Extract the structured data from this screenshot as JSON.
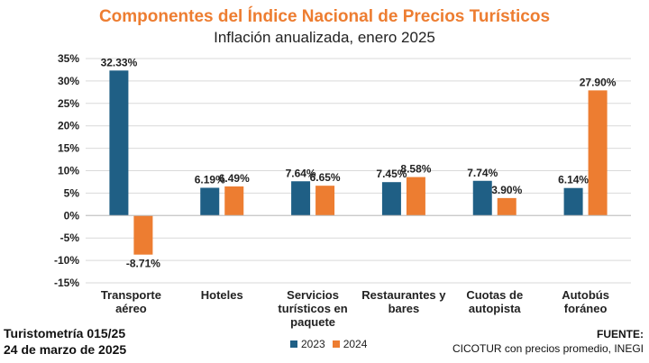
{
  "chart_data": {
    "type": "bar",
    "title": "Componentes del Índice Nacional de Precios Turísticos",
    "subtitle": "Inflación anualizada, enero 2025",
    "categories": [
      [
        "Transporte",
        "aéreo"
      ],
      [
        "Hoteles"
      ],
      [
        "Servicios",
        "turísticos en",
        "paquete"
      ],
      [
        "Restaurantes y",
        "bares"
      ],
      [
        "Cuotas de",
        "autopista"
      ],
      [
        "Autobús",
        "foráneo"
      ]
    ],
    "series": [
      {
        "name": "2023",
        "color": "#1f5f85",
        "values": [
          32.33,
          6.19,
          7.64,
          7.45,
          7.74,
          6.14
        ],
        "labels": [
          "32.33%",
          "6.19%",
          "7.64%",
          "7.45%",
          "7.74%",
          "6.14%"
        ]
      },
      {
        "name": "2024",
        "color": "#ed7d31",
        "values": [
          -8.71,
          6.49,
          6.65,
          8.58,
          3.9,
          27.9
        ],
        "labels": [
          "-8.71%",
          "6.49%",
          "6.65%",
          "8.58%",
          "3.90%",
          "27.90%"
        ]
      }
    ],
    "ylim": [
      -15,
      35
    ],
    "yticks": [
      35,
      30,
      25,
      20,
      15,
      10,
      5,
      0,
      -5,
      -10,
      -15
    ],
    "ytick_labels": [
      "35%",
      "30%",
      "25%",
      "20%",
      "15%",
      "10%",
      "5%",
      "0%",
      "-5%",
      "-10%",
      "-15%"
    ],
    "legend_position": "bottom",
    "grid": true
  },
  "footer": {
    "left_line1": "Turistometría 015/25",
    "left_line2": "24 de marzo de 2025",
    "right_label": "FUENTE:",
    "right_text": "CICOTUR con precios promedio, INEGI"
  }
}
